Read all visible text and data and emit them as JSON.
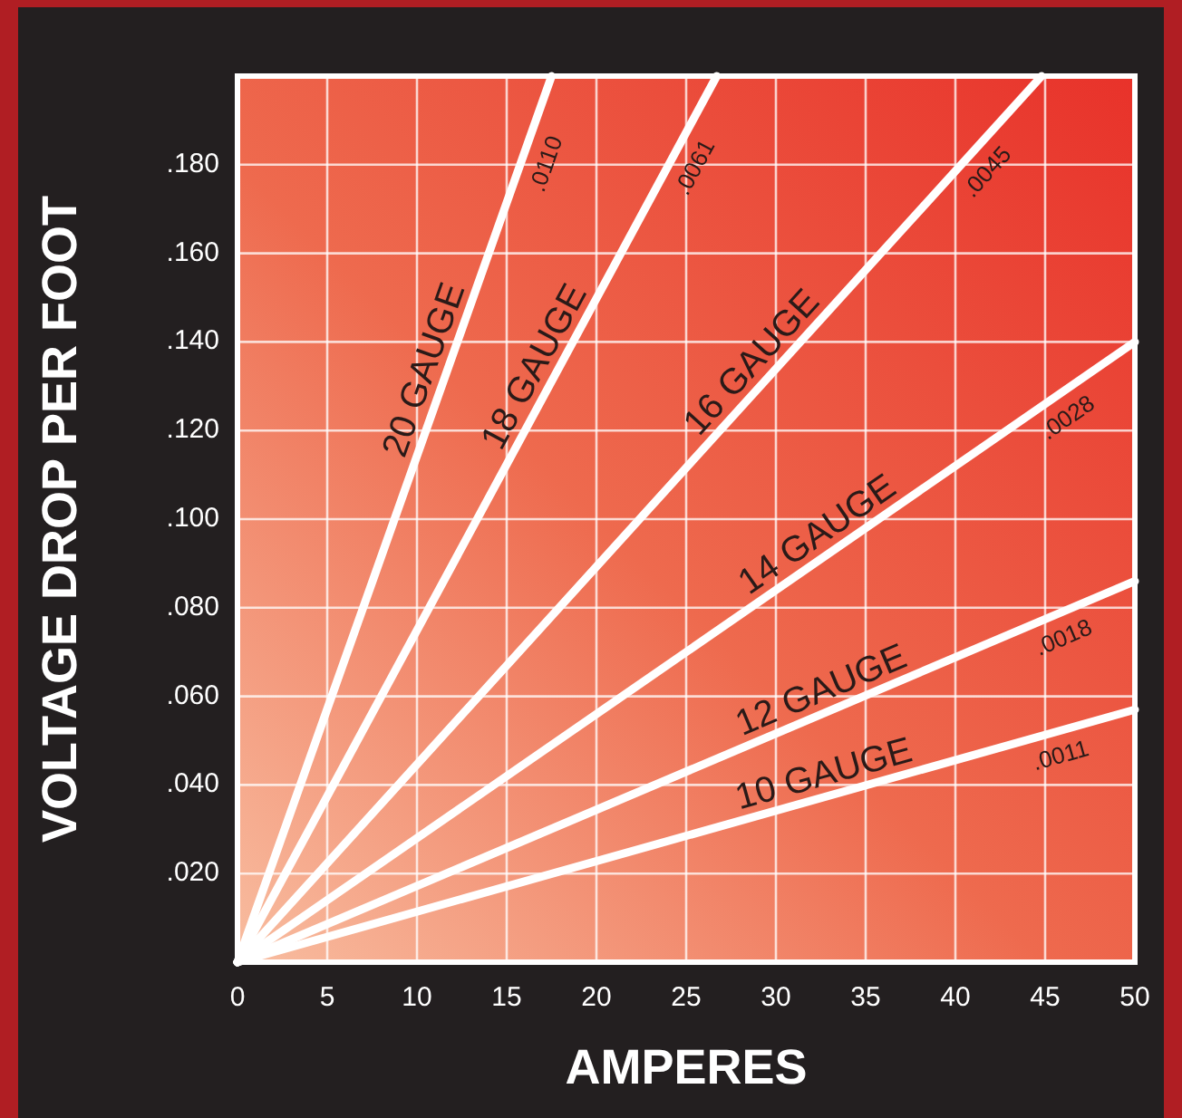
{
  "chart_data": {
    "type": "line",
    "xlabel": "AMPERES",
    "ylabel": "VOLTAGE DROP PER FOOT",
    "xlim": [
      0,
      50
    ],
    "ylim": [
      0,
      0.2
    ],
    "xticks": [
      0,
      5,
      10,
      15,
      20,
      25,
      30,
      35,
      40,
      45,
      50
    ],
    "yticks": [
      {
        "value": 0.02,
        "label": ".020"
      },
      {
        "value": 0.04,
        "label": ".040"
      },
      {
        "value": 0.06,
        "label": ".060"
      },
      {
        "value": 0.08,
        "label": ".080"
      },
      {
        "value": 0.1,
        "label": ".100"
      },
      {
        "value": 0.12,
        "label": ".120"
      },
      {
        "value": 0.14,
        "label": ".140"
      },
      {
        "value": 0.16,
        "label": ".160"
      },
      {
        "value": 0.18,
        "label": ".180"
      }
    ],
    "grid": true,
    "series": [
      {
        "name": "20 GAUGE",
        "color": "#ffffff",
        "x": [
          0,
          17.5
        ],
        "values": [
          0,
          0.2
        ]
      },
      {
        "name": "18 GAUGE",
        "color": "#ffffff",
        "x": [
          0,
          26.7
        ],
        "values": [
          0,
          0.2
        ]
      },
      {
        "name": "16 GAUGE",
        "color": "#ffffff",
        "x": [
          0,
          44.8
        ],
        "values": [
          0,
          0.2
        ]
      },
      {
        "name": "14 GAUGE",
        "color": "#ffffff",
        "x": [
          0,
          50
        ],
        "values": [
          0,
          0.14
        ]
      },
      {
        "name": "12 GAUGE",
        "color": "#ffffff",
        "x": [
          0,
          50
        ],
        "values": [
          0,
          0.086
        ]
      },
      {
        "name": "10 GAUGE",
        "color": "#ffffff",
        "x": [
          0,
          50
        ],
        "values": [
          0,
          0.057
        ]
      }
    ],
    "annotations": [
      ".0110",
      ".0061",
      ".0045",
      ".0028",
      ".0018",
      ".0011"
    ]
  }
}
